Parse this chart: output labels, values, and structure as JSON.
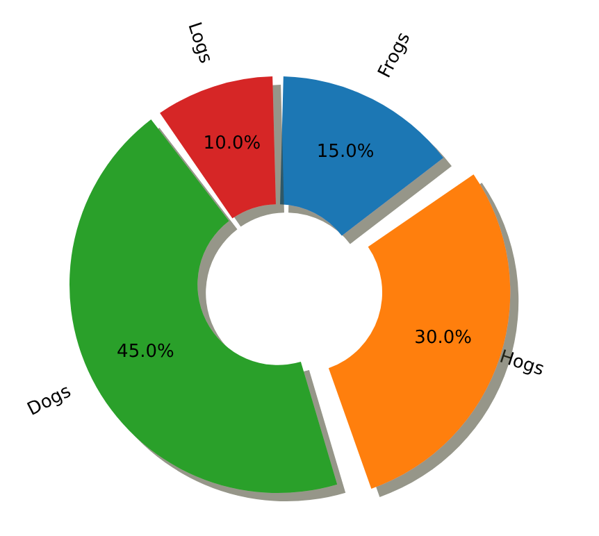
{
  "chart_data": {
    "type": "donut",
    "categories": [
      "Frogs",
      "Hogs",
      "Dogs",
      "Logs"
    ],
    "values": [
      15,
      30,
      45,
      10
    ],
    "colors": [
      "#1f77b4",
      "#ff7f0e",
      "#2ca02c",
      "#d62728"
    ],
    "value_labels": [
      "15.0%",
      "30.0%",
      "45.0%",
      "10.0%"
    ],
    "legend": false
  }
}
